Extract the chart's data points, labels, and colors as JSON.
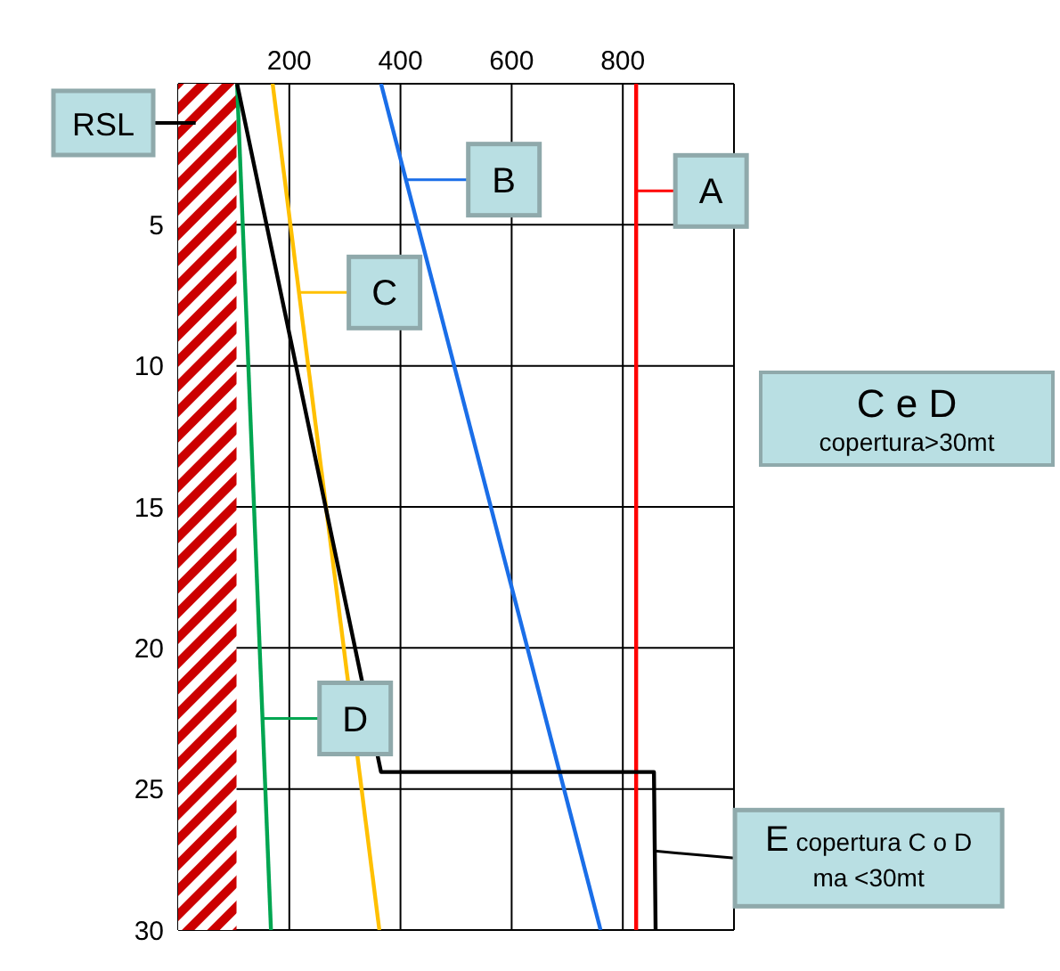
{
  "chart_data": {
    "type": "line",
    "xlim": [
      0,
      1000
    ],
    "xticks": [
      200,
      400,
      600,
      800
    ],
    "ylim": [
      30,
      0
    ],
    "yticks": [
      5,
      10,
      15,
      20,
      25,
      30
    ],
    "grid": true,
    "legend": "bottom right",
    "marker": "none",
    "line_style": "solid",
    "series": [
      {
        "name": "A",
        "color": "#ff0000",
        "x": [
          824,
          824
        ],
        "values": [
          0,
          30
        ]
      },
      {
        "name": "B",
        "color": "#1a6ee8",
        "x": [
          365,
          760
        ],
        "values": [
          0,
          30
        ]
      },
      {
        "name": "C",
        "color": "#ffc000",
        "x": [
          170,
          362
        ],
        "values": [
          0,
          30
        ]
      },
      {
        "name": "D",
        "color": "#00a651",
        "x": [
          106,
          167
        ],
        "values": [
          0,
          30
        ]
      },
      {
        "name": "E",
        "color": "#000000",
        "x": [
          106,
          365,
          856,
          859
        ],
        "values": [
          0,
          24.4,
          24.4,
          30
        ]
      }
    ],
    "bands": [
      {
        "axis": "x",
        "from": 0,
        "to": 105,
        "label": "RSL",
        "color": "#cc0000"
      }
    ],
    "annotations": [
      "C e D",
      "copertura>30mt",
      "copertura C o D ma <30mt"
    ]
  }
}
